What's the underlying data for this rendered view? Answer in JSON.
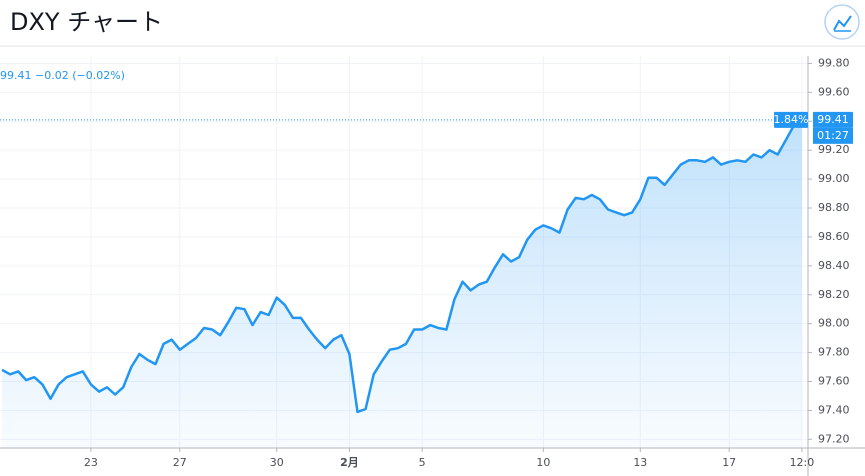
{
  "chart_data": {
    "type": "area",
    "title": "DXY チャート",
    "legend": "99.41 −0.02 (−0.02%)",
    "change_percent": "1.84%",
    "countdown": "01:27",
    "last_price": {
      "value": 99.41,
      "label": "99.41"
    },
    "categories": [
      null,
      null,
      null,
      null,
      null,
      null,
      null,
      null,
      null,
      null,
      null,
      "23",
      null,
      null,
      null,
      null,
      null,
      null,
      null,
      null,
      null,
      null,
      "27",
      null,
      null,
      null,
      null,
      null,
      null,
      null,
      null,
      null,
      null,
      null,
      "30",
      null,
      null,
      null,
      null,
      null,
      null,
      null,
      null,
      "2月",
      null,
      null,
      null,
      null,
      null,
      null,
      null,
      null,
      "5",
      null,
      null,
      null,
      null,
      null,
      null,
      null,
      null,
      null,
      null,
      null,
      null,
      null,
      null,
      "10",
      null,
      null,
      null,
      null,
      null,
      null,
      null,
      null,
      null,
      null,
      null,
      "13",
      null,
      null,
      null,
      null,
      null,
      null,
      null,
      null,
      null,
      null,
      "17",
      null,
      null,
      null,
      null,
      null,
      null,
      null,
      null,
      "12:0"
    ],
    "series": [
      {
        "name": "DXY",
        "color": "#2196f3",
        "values": [
          97.68,
          97.65,
          97.67,
          97.61,
          97.63,
          97.58,
          97.48,
          97.58,
          97.63,
          97.65,
          97.67,
          97.58,
          97.53,
          97.56,
          97.51,
          97.56,
          97.7,
          97.79,
          97.75,
          97.72,
          97.86,
          97.89,
          97.82,
          97.86,
          97.9,
          97.97,
          97.96,
          97.92,
          98.01,
          98.11,
          98.1,
          97.99,
          98.08,
          98.06,
          98.18,
          98.13,
          98.04,
          98.04,
          97.96,
          97.89,
          97.83,
          97.89,
          97.92,
          97.79,
          97.39,
          97.41,
          97.65,
          97.74,
          97.82,
          97.83,
          97.86,
          97.96,
          97.96,
          97.99,
          97.97,
          97.96,
          98.17,
          98.29,
          98.23,
          98.27,
          98.29,
          98.39,
          98.48,
          98.43,
          98.46,
          98.58,
          98.65,
          98.68,
          98.66,
          98.63,
          98.79,
          98.87,
          98.86,
          98.89,
          98.86,
          98.79,
          98.77,
          98.75,
          98.77,
          98.86,
          99.01,
          99.01,
          98.96,
          99.03,
          99.1,
          99.13,
          99.13,
          99.12,
          99.15,
          99.1,
          99.12,
          99.13,
          99.12,
          99.17,
          99.15,
          99.2,
          99.17,
          99.27,
          99.37,
          99.41
        ]
      }
    ],
    "ylim": [
      97.14,
      99.81
    ],
    "yticks": [
      {
        "value": 97.2,
        "label": "97.20"
      },
      {
        "value": 97.4,
        "label": "97.40"
      },
      {
        "value": 97.6,
        "label": "97.60"
      },
      {
        "value": 97.8,
        "label": "97.80"
      },
      {
        "value": 98.0,
        "label": "98.00"
      },
      {
        "value": 98.2,
        "label": "98.20"
      },
      {
        "value": 98.4,
        "label": "98.40"
      },
      {
        "value": 98.6,
        "label": "98.60"
      },
      {
        "value": 98.8,
        "label": "98.80"
      },
      {
        "value": 99.0,
        "label": "99.00"
      },
      {
        "value": 99.2,
        "label": "99.20"
      },
      {
        "value": 99.4,
        "label": "99.40"
      },
      {
        "value": 99.6,
        "label": "99.60"
      },
      {
        "value": 99.8,
        "label": "99.80"
      }
    ],
    "grid": true
  }
}
